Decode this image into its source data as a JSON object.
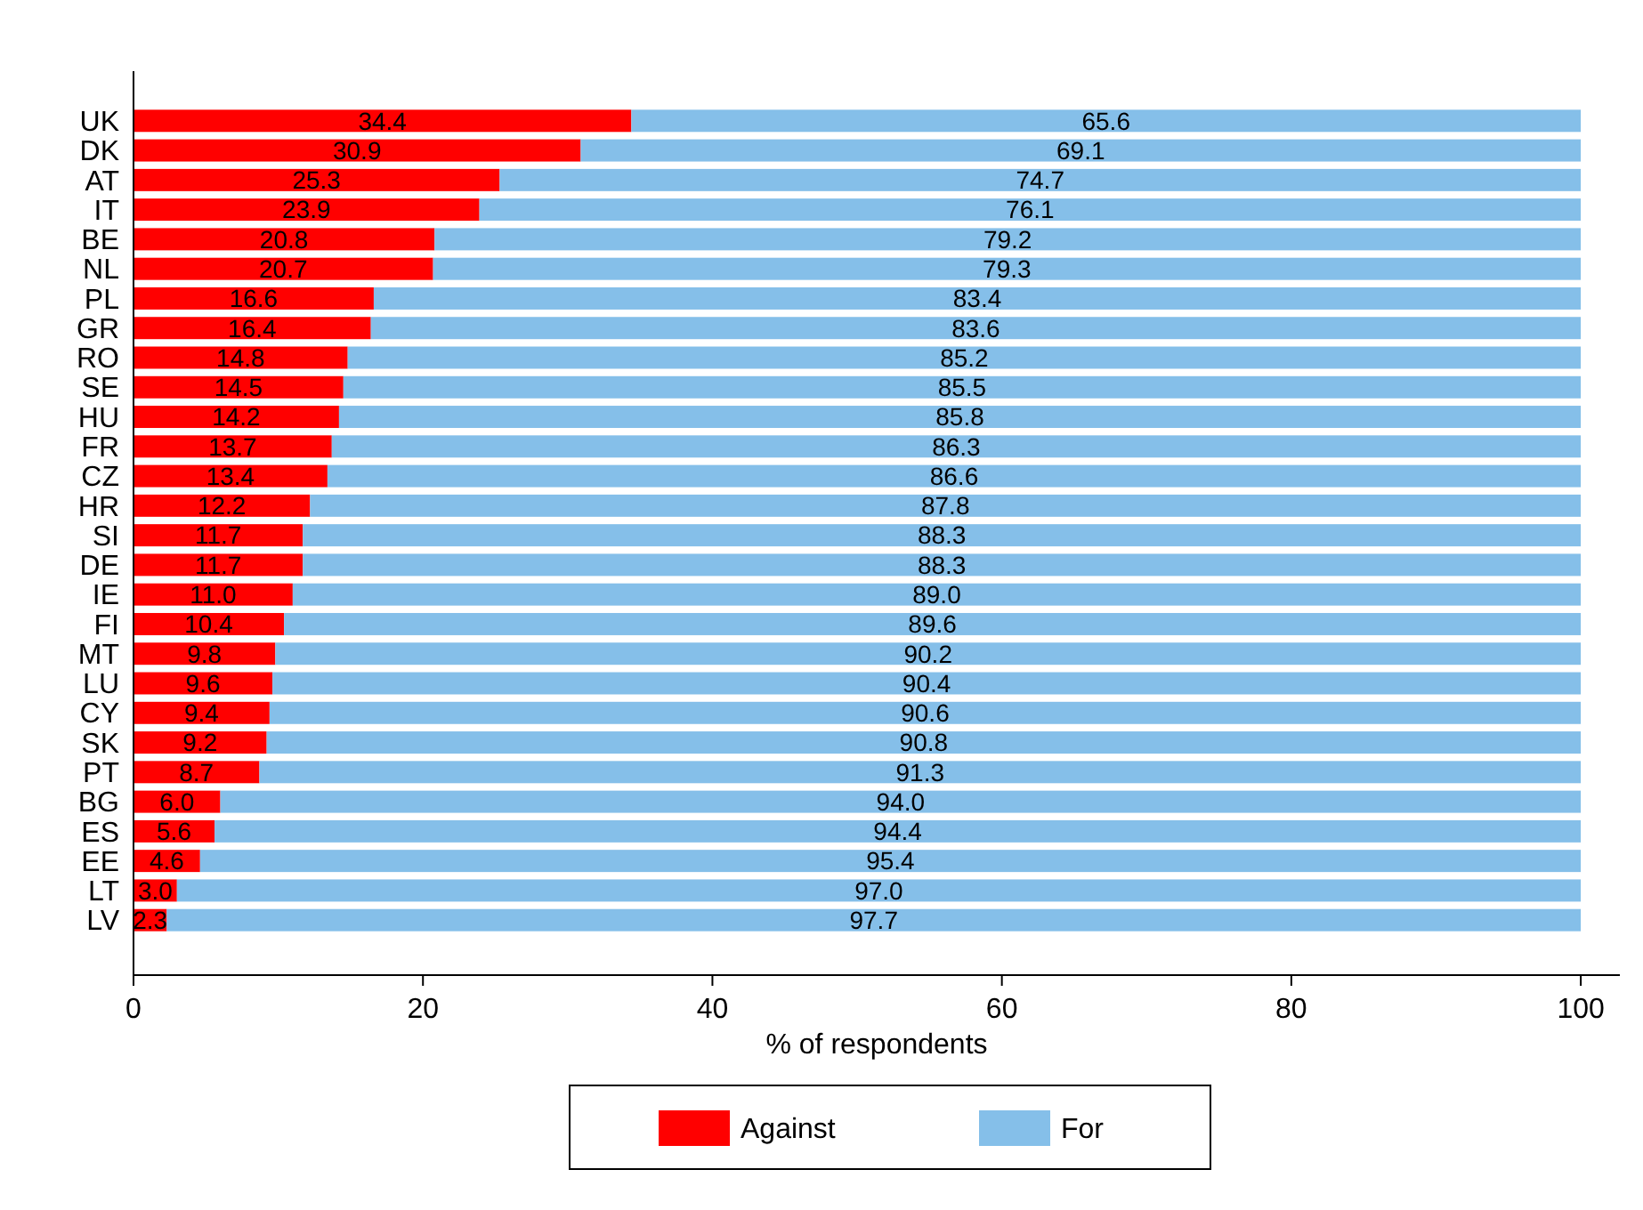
{
  "chart_data": {
    "type": "bar",
    "orientation": "horizontal",
    "stacked": true,
    "xlabel": "% of respondents",
    "categories": [
      "UK",
      "DK",
      "AT",
      "IT",
      "BE",
      "NL",
      "PL",
      "GR",
      "RO",
      "SE",
      "HU",
      "FR",
      "CZ",
      "HR",
      "SI",
      "DE",
      "IE",
      "FI",
      "MT",
      "LU",
      "CY",
      "SK",
      "PT",
      "BG",
      "ES",
      "EE",
      "LT",
      "LV"
    ],
    "series": [
      {
        "name": "Against",
        "color": "#ff0000",
        "values": [
          34.4,
          30.9,
          25.3,
          23.9,
          20.8,
          20.7,
          16.6,
          16.4,
          14.8,
          14.5,
          14.2,
          13.7,
          13.4,
          12.2,
          11.7,
          11.7,
          11.0,
          10.4,
          9.8,
          9.6,
          9.4,
          9.2,
          8.7,
          6.0,
          5.6,
          4.6,
          3.0,
          2.3
        ],
        "value_labels": [
          "34.4",
          "30.9",
          "25.3",
          "23.9",
          "20.8",
          "20.7",
          "16.6",
          "16.4",
          "14.8",
          "14.5",
          "14.2",
          "13.7",
          "13.4",
          "12.2",
          "11.7",
          "11.7",
          "11.0",
          "10.4",
          "9.8",
          "9.6",
          "9.4",
          "9.2",
          "8.7",
          "6.0",
          "5.6",
          "4.6",
          "3.0",
          "2.3"
        ]
      },
      {
        "name": "For",
        "color": "#85bfe9",
        "values": [
          65.6,
          69.1,
          74.7,
          76.1,
          79.2,
          79.3,
          83.4,
          83.6,
          85.2,
          85.5,
          85.8,
          86.3,
          86.6,
          87.8,
          88.3,
          88.3,
          89.0,
          89.6,
          90.2,
          90.4,
          90.6,
          90.8,
          91.3,
          94.0,
          94.4,
          95.4,
          97.0,
          97.7
        ],
        "value_labels": [
          "65.6",
          "69.1",
          "74.7",
          "76.1",
          "79.2",
          "79.3",
          "83.4",
          "83.6",
          "85.2",
          "85.5",
          "85.8",
          "86.3",
          "86.6",
          "87.8",
          "88.3",
          "88.3",
          "89.0",
          "89.6",
          "90.2",
          "90.4",
          "90.6",
          "90.8",
          "91.3",
          "94.0",
          "94.4",
          "95.4",
          "97.0",
          "97.7"
        ]
      }
    ],
    "xlim": [
      0,
      102.7
    ],
    "xticks": [
      0,
      20,
      40,
      60,
      80,
      100
    ],
    "grid": false,
    "legend": "bottom"
  }
}
